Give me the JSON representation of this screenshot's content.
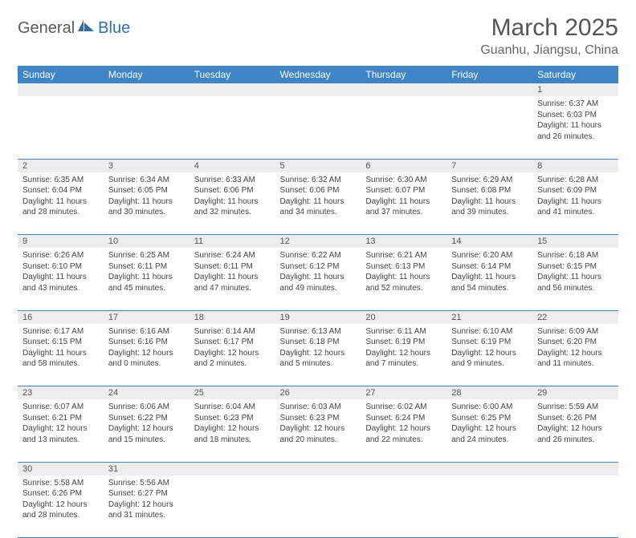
{
  "brand": {
    "part1": "General",
    "part2": "Blue"
  },
  "title": "March 2025",
  "location": "Guanhu, Jiangsu, China",
  "colors": {
    "header_bg": "#3d85c6",
    "header_text": "#ffffff",
    "daynum_bg": "#ededed",
    "border": "#3d85c6",
    "brand_accent": "#2f6fb0",
    "text": "#444444"
  },
  "weekdays": [
    "Sunday",
    "Monday",
    "Tuesday",
    "Wednesday",
    "Thursday",
    "Friday",
    "Saturday"
  ],
  "weeks": [
    [
      null,
      null,
      null,
      null,
      null,
      null,
      {
        "n": "1",
        "sr": "6:37 AM",
        "ss": "6:03 PM",
        "dl": "11 hours and 26 minutes."
      }
    ],
    [
      {
        "n": "2",
        "sr": "6:35 AM",
        "ss": "6:04 PM",
        "dl": "11 hours and 28 minutes."
      },
      {
        "n": "3",
        "sr": "6:34 AM",
        "ss": "6:05 PM",
        "dl": "11 hours and 30 minutes."
      },
      {
        "n": "4",
        "sr": "6:33 AM",
        "ss": "6:06 PM",
        "dl": "11 hours and 32 minutes."
      },
      {
        "n": "5",
        "sr": "6:32 AM",
        "ss": "6:06 PM",
        "dl": "11 hours and 34 minutes."
      },
      {
        "n": "6",
        "sr": "6:30 AM",
        "ss": "6:07 PM",
        "dl": "11 hours and 37 minutes."
      },
      {
        "n": "7",
        "sr": "6:29 AM",
        "ss": "6:08 PM",
        "dl": "11 hours and 39 minutes."
      },
      {
        "n": "8",
        "sr": "6:28 AM",
        "ss": "6:09 PM",
        "dl": "11 hours and 41 minutes."
      }
    ],
    [
      {
        "n": "9",
        "sr": "6:26 AM",
        "ss": "6:10 PM",
        "dl": "11 hours and 43 minutes."
      },
      {
        "n": "10",
        "sr": "6:25 AM",
        "ss": "6:11 PM",
        "dl": "11 hours and 45 minutes."
      },
      {
        "n": "11",
        "sr": "6:24 AM",
        "ss": "6:11 PM",
        "dl": "11 hours and 47 minutes."
      },
      {
        "n": "12",
        "sr": "6:22 AM",
        "ss": "6:12 PM",
        "dl": "11 hours and 49 minutes."
      },
      {
        "n": "13",
        "sr": "6:21 AM",
        "ss": "6:13 PM",
        "dl": "11 hours and 52 minutes."
      },
      {
        "n": "14",
        "sr": "6:20 AM",
        "ss": "6:14 PM",
        "dl": "11 hours and 54 minutes."
      },
      {
        "n": "15",
        "sr": "6:18 AM",
        "ss": "6:15 PM",
        "dl": "11 hours and 56 minutes."
      }
    ],
    [
      {
        "n": "16",
        "sr": "6:17 AM",
        "ss": "6:15 PM",
        "dl": "11 hours and 58 minutes."
      },
      {
        "n": "17",
        "sr": "6:16 AM",
        "ss": "6:16 PM",
        "dl": "12 hours and 0 minutes."
      },
      {
        "n": "18",
        "sr": "6:14 AM",
        "ss": "6:17 PM",
        "dl": "12 hours and 2 minutes."
      },
      {
        "n": "19",
        "sr": "6:13 AM",
        "ss": "6:18 PM",
        "dl": "12 hours and 5 minutes."
      },
      {
        "n": "20",
        "sr": "6:11 AM",
        "ss": "6:19 PM",
        "dl": "12 hours and 7 minutes."
      },
      {
        "n": "21",
        "sr": "6:10 AM",
        "ss": "6:19 PM",
        "dl": "12 hours and 9 minutes."
      },
      {
        "n": "22",
        "sr": "6:09 AM",
        "ss": "6:20 PM",
        "dl": "12 hours and 11 minutes."
      }
    ],
    [
      {
        "n": "23",
        "sr": "6:07 AM",
        "ss": "6:21 PM",
        "dl": "12 hours and 13 minutes."
      },
      {
        "n": "24",
        "sr": "6:06 AM",
        "ss": "6:22 PM",
        "dl": "12 hours and 15 minutes."
      },
      {
        "n": "25",
        "sr": "6:04 AM",
        "ss": "6:23 PM",
        "dl": "12 hours and 18 minutes."
      },
      {
        "n": "26",
        "sr": "6:03 AM",
        "ss": "6:23 PM",
        "dl": "12 hours and 20 minutes."
      },
      {
        "n": "27",
        "sr": "6:02 AM",
        "ss": "6:24 PM",
        "dl": "12 hours and 22 minutes."
      },
      {
        "n": "28",
        "sr": "6:00 AM",
        "ss": "6:25 PM",
        "dl": "12 hours and 24 minutes."
      },
      {
        "n": "29",
        "sr": "5:59 AM",
        "ss": "6:26 PM",
        "dl": "12 hours and 26 minutes."
      }
    ],
    [
      {
        "n": "30",
        "sr": "5:58 AM",
        "ss": "6:26 PM",
        "dl": "12 hours and 28 minutes."
      },
      {
        "n": "31",
        "sr": "5:56 AM",
        "ss": "6:27 PM",
        "dl": "12 hours and 31 minutes."
      },
      null,
      null,
      null,
      null,
      null
    ]
  ],
  "labels": {
    "sunrise": "Sunrise:",
    "sunset": "Sunset:",
    "daylight": "Daylight:"
  }
}
